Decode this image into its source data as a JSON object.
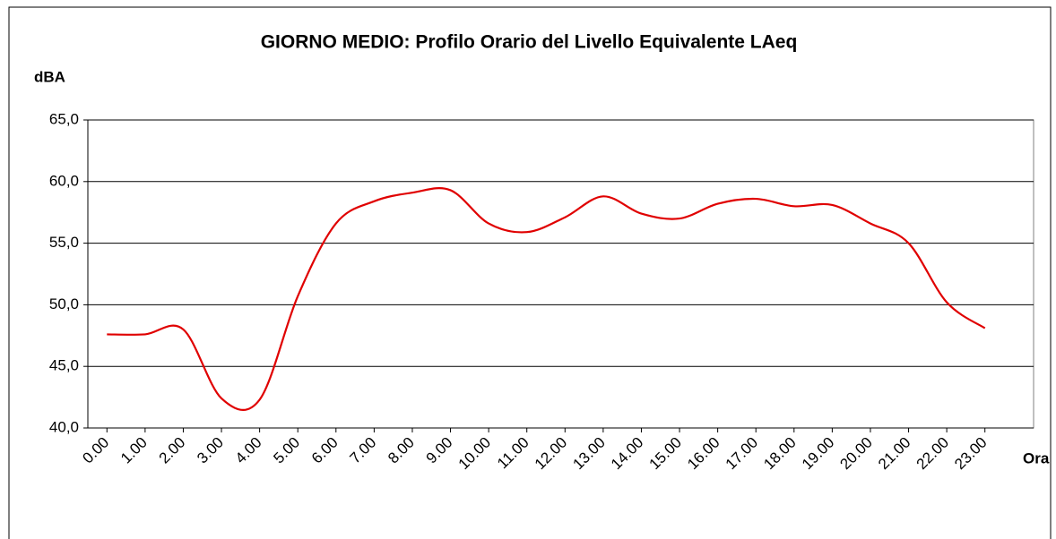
{
  "chart_data": {
    "type": "line",
    "title": "GIORNO MEDIO: Profilo Orario del Livello Equivalente LAeq",
    "y_label": "dBA",
    "x_label": "Ora",
    "categories": [
      "0.00",
      "1.00",
      "2.00",
      "3.00",
      "4.00",
      "5.00",
      "6.00",
      "7.00",
      "8.00",
      "9.00",
      "10.00",
      "11.00",
      "12.00",
      "13.00",
      "14.00",
      "15.00",
      "16.00",
      "17.00",
      "18.00",
      "19.00",
      "20.00",
      "21.00",
      "22.00",
      "23.00"
    ],
    "series": [
      {
        "name": "LAeq",
        "color": "#e00000",
        "values": [
          47.6,
          47.6,
          48.0,
          42.4,
          42.3,
          50.7,
          56.6,
          58.4,
          59.1,
          59.3,
          56.6,
          55.9,
          57.1,
          58.8,
          57.4,
          57.0,
          58.2,
          58.6,
          58.0,
          58.1,
          56.6,
          55.0,
          50.2,
          48.1
        ]
      }
    ],
    "ylim": [
      40,
      65
    ],
    "yticks": [
      {
        "value": 40,
        "label": "40,0"
      },
      {
        "value": 45,
        "label": "45,0"
      },
      {
        "value": 50,
        "label": "50,0"
      },
      {
        "value": 55,
        "label": "55,0"
      },
      {
        "value": 60,
        "label": "60,0"
      },
      {
        "value": 65,
        "label": "65,0"
      }
    ],
    "grid": true
  }
}
